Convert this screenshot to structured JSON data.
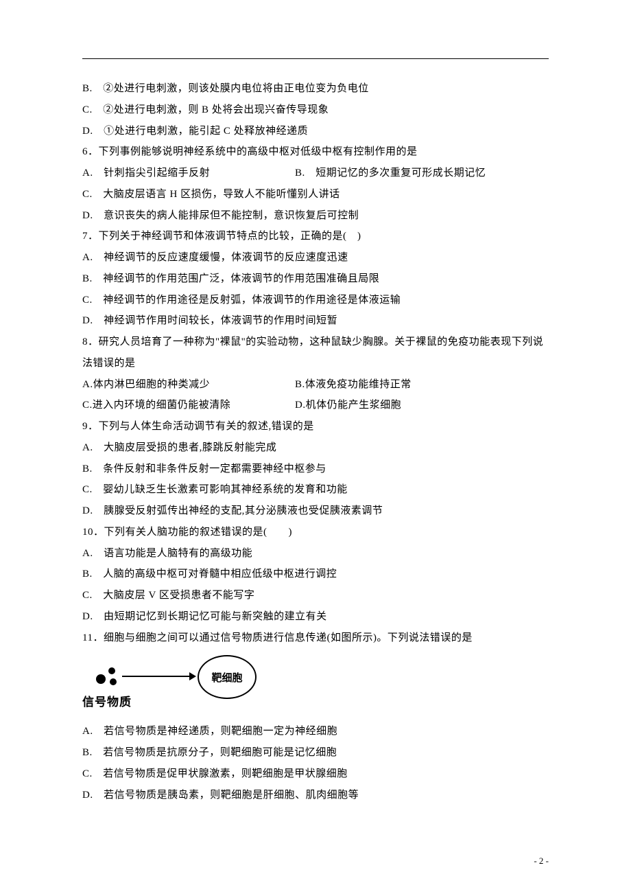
{
  "q5": {
    "B": "B.　②处进行电刺激，则该处膜内电位将由正电位变为负电位",
    "C": "C.　②处进行电刺激，则 B 处将会出现兴奋传导现象",
    "D": "D.　①处进行电刺激，能引起 C 处释放神经递质"
  },
  "q6": {
    "stem": "6．下列事例能够说明神经系统中的高级中枢对低级中枢有控制作用的是",
    "A": "A.　针刺指尖引起缩手反射",
    "B": "B.　短期记忆的多次重复可形成长期记忆",
    "C": "C.　大脑皮层语言 H 区损伤，导致人不能听懂别人讲话",
    "D": "D.　意识丧失的病人能排尿但不能控制，意识恢复后可控制"
  },
  "q7": {
    "stem": "7．下列关于神经调节和体液调节特点的比较，正确的是(　)",
    "A": "A.　神经调节的反应速度缓慢，体液调节的反应速度迅速",
    "B": "B.　神经调节的作用范围广泛，体液调节的作用范围准确且局限",
    "C": "C.　神经调节的作用途径是反射弧，体液调节的作用途径是体液运输",
    "D": "D.　神经调节作用时间较长，体液调节的作用时间短暂"
  },
  "q8": {
    "stem": "8．研究人员培育了一种称为\"裸鼠\"的实验动物，这种鼠缺少胸腺。关于裸鼠的免疫功能表现下列说法错误的是",
    "A": "A.体内淋巴细胞的种类减少",
    "B": "B.体液免疫功能维持正常",
    "C": "C.进入内环境的细菌仍能被清除",
    "D": "D.机体仍能产生浆细胞"
  },
  "q9": {
    "stem": "9．下列与人体生命活动调节有关的叙述,错误的是",
    "A": "A.　大脑皮层受损的患者,膝跳反射能完成",
    "B": "B.　条件反射和非条件反射一定都需要神经中枢参与",
    "C": "C.　婴幼儿缺乏生长激素可影响其神经系统的发育和功能",
    "D": "D.　胰腺受反射弧传出神经的支配,其分泌胰液也受促胰液素调节"
  },
  "q10": {
    "stem": "10．下列有关人脑功能的叙述错误的是(　　)",
    "A": "A.　语言功能是人脑特有的高级功能",
    "B": "B.　人脑的高级中枢可对脊髓中相应低级中枢进行调控",
    "C": "C.　大脑皮层 V 区受损患者不能写字",
    "D": "D.　由短期记忆到长期记忆可能与新突触的建立有关"
  },
  "q11": {
    "stem": "11．细胞与细胞之间可以通过信号物质进行信息传递(如图所示)。下列说法错误的是",
    "fig": {
      "target_cell": "靶细胞",
      "signal": "信号物质"
    },
    "A": "A.　若信号物质是神经递质，则靶细胞一定为神经细胞",
    "B": "B.　若信号物质是抗原分子，则靶细胞可能是记忆细胞",
    "C": "C.　若信号物质是促甲状腺激素，则靶细胞是甲状腺细胞",
    "D": "D.　若信号物质是胰岛素，则靶细胞是肝细胞、肌肉细胞等"
  },
  "page_num": "- 2 -"
}
